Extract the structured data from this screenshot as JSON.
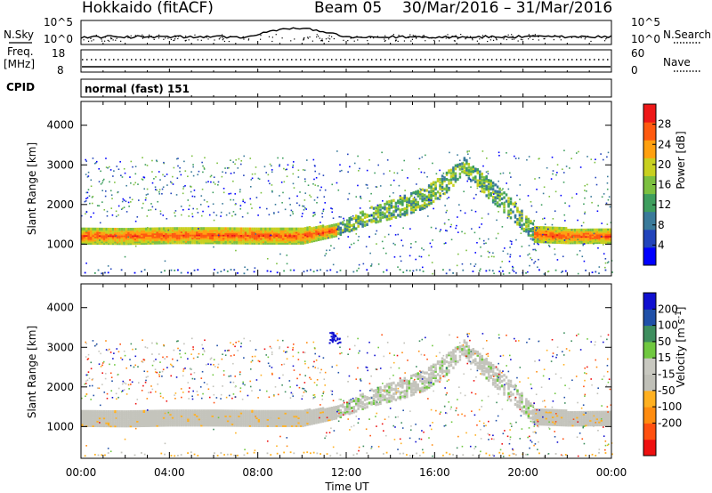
{
  "header": {
    "station": "Hokkaido (fitACF)",
    "beam": "Beam 05",
    "date_range": "30/Mar/2016 – 31/Mar/2016"
  },
  "strips": {
    "nsky": {
      "label": "N.Sky",
      "left_ticks": [
        "10^5",
        "10^0"
      ],
      "right_label": "N.Search",
      "right_ticks": [
        "10^5",
        "10^0"
      ]
    },
    "freq": {
      "label": "Freq.",
      "unit": "[MHz]",
      "left_ticks": [
        "18",
        "8"
      ],
      "right_label": "Nave",
      "right_ticks": [
        "60",
        "0"
      ]
    },
    "cpid": {
      "label": "CPID",
      "value": "normal (fast) 151"
    }
  },
  "colors": {
    "power": [
      "#0000ff",
      "#2244bb",
      "#3a7a9a",
      "#3e9e5e",
      "#7cc040",
      "#c8d020",
      "#ffa010",
      "#ff5a10",
      "#ee1818"
    ],
    "velocity": [
      "#ee1010",
      "#ff5010",
      "#ff8c10",
      "#ffb020",
      "#c0c0b8",
      "#c8c8c0",
      "#70c840",
      "#3e8e5e",
      "#2050a8",
      "#1010d0"
    ]
  },
  "chart_data": [
    {
      "type": "heatmap",
      "name": "power",
      "ylabel": "Slant Range [km]",
      "xlabel": "",
      "ylim": [
        200,
        4600
      ],
      "xlim": [
        "00:00",
        "24:00"
      ],
      "y_ticks": [
        1000,
        2000,
        3000,
        4000
      ],
      "x_ticks": [
        "00:00",
        "04:00",
        "08:00",
        "12:00",
        "16:00",
        "20:00",
        "00:00"
      ],
      "colorbar": {
        "label": "Power [dB]",
        "range": [
          0,
          32
        ],
        "ticks": [
          4,
          8,
          12,
          16,
          20,
          24,
          28
        ]
      },
      "main_echo_band": {
        "x_hours": [
          0.0,
          2.0,
          4.0,
          6.0,
          8.0,
          10.0,
          11.6,
          13.0,
          14.5,
          15.5,
          16.5,
          17.3,
          18.5,
          19.5,
          20.5,
          22.0,
          24.0
        ],
        "center_km": [
          1250,
          1250,
          1260,
          1270,
          1260,
          1250,
          1400,
          1750,
          2000,
          2200,
          2600,
          3000,
          2400,
          1900,
          1300,
          1250,
          1250
        ],
        "width_km": [
          380,
          400,
          380,
          400,
          400,
          380,
          280,
          400,
          500,
          500,
          500,
          400,
          500,
          500,
          400,
          360,
          340
        ]
      }
    },
    {
      "type": "heatmap",
      "name": "velocity",
      "ylabel": "Slant Range [km]",
      "xlabel": "Time UT",
      "ylim": [
        200,
        4600
      ],
      "xlim": [
        "00:00",
        "24:00"
      ],
      "y_ticks": [
        1000,
        2000,
        3000,
        4000
      ],
      "x_ticks": [
        "00:00",
        "04:00",
        "08:00",
        "12:00",
        "16:00",
        "20:00",
        "00:00"
      ],
      "colorbar": {
        "label": "Velocity [m s^-1]",
        "range": [
          -250,
          250
        ],
        "ticks": [
          200,
          100,
          50,
          15,
          -15,
          -50,
          -100,
          -200
        ]
      }
    }
  ]
}
